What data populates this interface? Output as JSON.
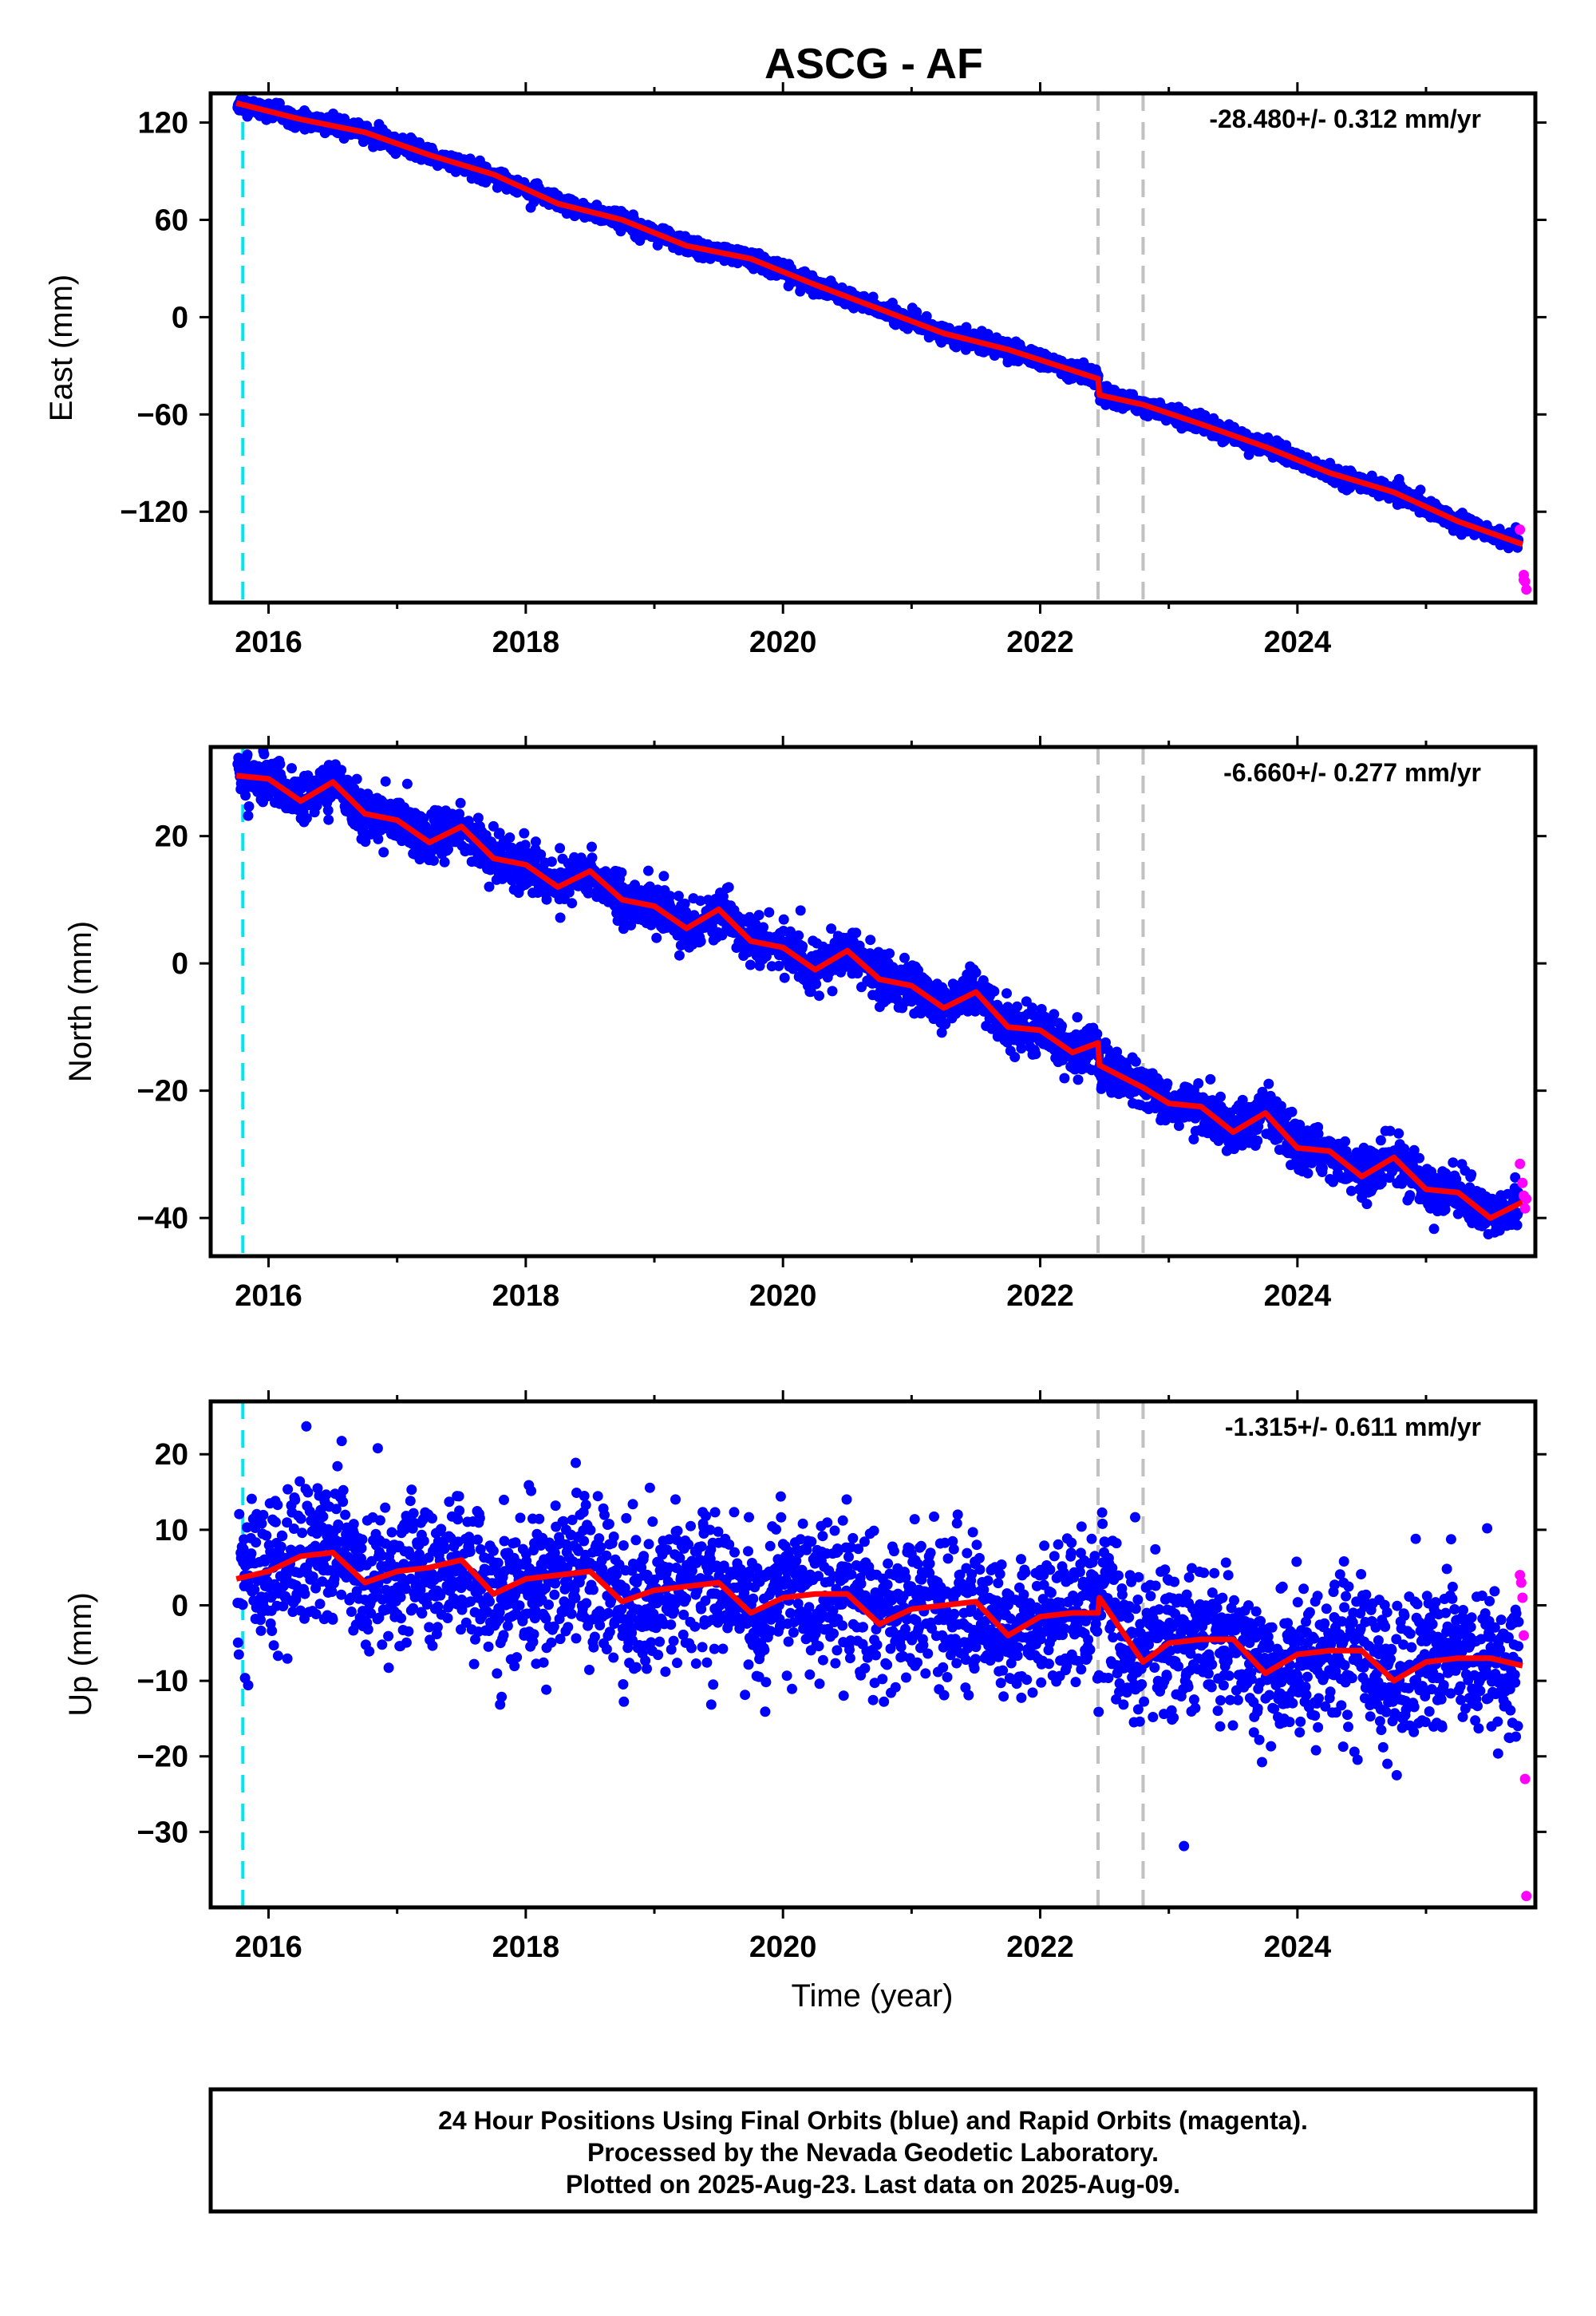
{
  "chart_data": {
    "type": "scatter",
    "title": "ASCG - AF",
    "xlabel": "Time (year)",
    "xlim": [
      2015.55,
      2025.85
    ],
    "x_ticks": [
      2016,
      2018,
      2020,
      2022,
      2024
    ],
    "x_tick_labels": [
      "2016",
      "2018",
      "2020",
      "2022",
      "2024"
    ],
    "markers": {
      "cyan_dashed": 2015.8,
      "gray_dashed": [
        2022.45,
        2022.8
      ]
    },
    "colors": {
      "final": "#0000ff",
      "rapid": "#ff00ff",
      "fit": "#ff0000",
      "cyan": "#00e5ee",
      "gray": "#c0c0c0"
    },
    "panels": [
      {
        "name": "East",
        "ylabel": "East (mm)",
        "ylim": [
          -176,
          138
        ],
        "y_ticks": [
          120,
          60,
          0,
          -60,
          -120
        ],
        "y_tick_labels": [
          "120",
          "60",
          "0",
          "−60",
          "−120"
        ],
        "rate": "-28.480+/- 0.312 mm/yr",
        "fit_x": [
          2015.75,
          2016.25,
          2016.75,
          2017.25,
          2017.75,
          2018.25,
          2018.75,
          2019.25,
          2019.75,
          2020.25,
          2020.75,
          2021.25,
          2021.75,
          2022.45,
          2022.46,
          2022.8,
          2023.25,
          2023.75,
          2024.25,
          2024.75,
          2025.25,
          2025.75
        ],
        "fit_y": [
          132,
          122,
          114,
          100,
          88,
          70,
          60,
          44,
          36,
          20,
          5,
          -10,
          -20,
          -38,
          -48,
          -54,
          -66,
          -80,
          -96,
          -108,
          -126,
          -140
        ],
        "noise": 2.5,
        "rapid": [
          [
            2025.73,
            -131
          ],
          [
            2025.76,
            -159
          ],
          [
            2025.77,
            -163
          ],
          [
            2025.78,
            -168
          ],
          [
            2025.76,
            -162
          ]
        ]
      },
      {
        "name": "North",
        "ylabel": "North (mm)",
        "ylim": [
          -46,
          34
        ],
        "y_ticks": [
          20,
          0,
          -20,
          -40
        ],
        "y_tick_labels": [
          "20",
          "0",
          "−20",
          "−40"
        ],
        "rate": "-6.660+/- 0.277 mm/yr",
        "fit_x": [
          2015.75,
          2016.0,
          2016.25,
          2016.5,
          2016.75,
          2017.0,
          2017.25,
          2017.5,
          2017.75,
          2018.0,
          2018.25,
          2018.5,
          2018.75,
          2019.0,
          2019.25,
          2019.5,
          2019.75,
          2020.0,
          2020.25,
          2020.5,
          2020.75,
          2021.0,
          2021.25,
          2021.5,
          2021.75,
          2022.0,
          2022.25,
          2022.45,
          2022.46,
          2022.8,
          2023.0,
          2023.25,
          2023.5,
          2023.75,
          2024.0,
          2024.25,
          2024.5,
          2024.75,
          2025.0,
          2025.25,
          2025.5,
          2025.75
        ],
        "fit_y": [
          29.5,
          29.0,
          25.5,
          28.5,
          23.5,
          22.5,
          19.0,
          21.5,
          16.5,
          15.5,
          12.0,
          14.5,
          10.0,
          9.0,
          5.5,
          8.5,
          3.5,
          2.5,
          -1.0,
          2.0,
          -2.5,
          -3.5,
          -7.0,
          -4.5,
          -10.0,
          -10.5,
          -14.0,
          -12.5,
          -16.0,
          -19.5,
          -22.0,
          -22.5,
          -26.5,
          -23.5,
          -29.0,
          -29.5,
          -33.5,
          -30.5,
          -35.5,
          -36.0,
          -40.0,
          -37.5
        ],
        "noise": 1.8,
        "rapid": [
          [
            2025.73,
            -31.5
          ],
          [
            2025.75,
            -34.5
          ],
          [
            2025.76,
            -36.5
          ],
          [
            2025.77,
            -38.5
          ],
          [
            2025.78,
            -37.0
          ]
        ]
      },
      {
        "name": "Up",
        "ylabel": "Up (mm)",
        "ylim": [
          -40,
          27
        ],
        "y_ticks": [
          20,
          10,
          0,
          -10,
          -20,
          -30
        ],
        "y_tick_labels": [
          "20",
          "10",
          "0",
          "−10",
          "−20",
          "−30"
        ],
        "rate": "-1.315+/- 0.611 mm/yr",
        "fit_x": [
          2015.75,
          2016.0,
          2016.25,
          2016.5,
          2016.75,
          2017.0,
          2017.25,
          2017.5,
          2017.75,
          2018.0,
          2018.25,
          2018.5,
          2018.75,
          2019.0,
          2019.25,
          2019.5,
          2019.75,
          2020.0,
          2020.25,
          2020.5,
          2020.75,
          2021.0,
          2021.25,
          2021.5,
          2021.75,
          2022.0,
          2022.25,
          2022.45,
          2022.46,
          2022.8,
          2023.0,
          2023.25,
          2023.5,
          2023.75,
          2024.0,
          2024.25,
          2024.5,
          2024.75,
          2025.0,
          2025.25,
          2025.5,
          2025.75
        ],
        "fit_y": [
          3.5,
          4.5,
          6.5,
          7.0,
          3.0,
          4.5,
          5.0,
          6.0,
          1.5,
          3.5,
          4.0,
          4.5,
          0.5,
          2.0,
          2.5,
          3.0,
          -1.0,
          1.0,
          1.5,
          1.5,
          -2.5,
          -0.5,
          0.0,
          0.5,
          -4.0,
          -1.5,
          -1.0,
          -1.0,
          1.0,
          -7.5,
          -5.0,
          -4.5,
          -4.5,
          -9.0,
          -6.5,
          -6.0,
          -6.0,
          -10.0,
          -7.5,
          -7.0,
          -7.0,
          -8.0
        ],
        "noise": 4.8,
        "rapid": [
          [
            2025.73,
            4.0
          ],
          [
            2025.74,
            3.0
          ],
          [
            2025.75,
            1.0
          ],
          [
            2025.76,
            -4.0
          ],
          [
            2025.77,
            -23.0
          ],
          [
            2025.78,
            -38.5
          ]
        ]
      }
    ],
    "footer": [
      "24 Hour Positions Using Final Orbits (blue) and Rapid Orbits (magenta).",
      "Processed by the Nevada Geodetic Laboratory.",
      "Plotted on 2025-Aug-23. Last data on 2025-Aug-09."
    ]
  }
}
